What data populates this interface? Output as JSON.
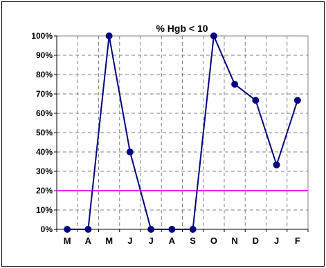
{
  "chart_data": {
    "type": "line",
    "title": "% Hgb < 10",
    "xlabel": "",
    "ylabel": "",
    "categories": [
      "M",
      "A",
      "M",
      "J",
      "J",
      "A",
      "S",
      "O",
      "N",
      "D",
      "J",
      "F"
    ],
    "y_ticks": [
      "0%",
      "10%",
      "20%",
      "30%",
      "40%",
      "50%",
      "60%",
      "70%",
      "80%",
      "90%",
      "100%"
    ],
    "ylim": [
      0,
      100
    ],
    "grid": true,
    "series": [
      {
        "values": [
          0,
          0,
          100,
          40,
          0,
          0,
          0,
          100,
          75,
          66.7,
          33.3,
          66.7
        ],
        "color": "#000080"
      }
    ],
    "reference_line": {
      "value": 20,
      "color": "#ff00ff"
    }
  }
}
